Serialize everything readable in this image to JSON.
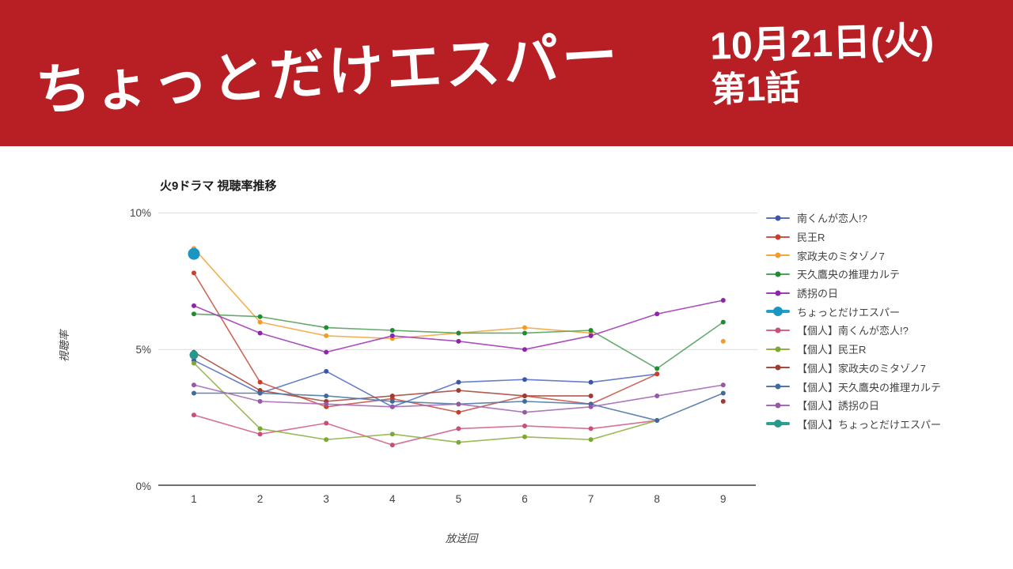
{
  "banner": {
    "title": "ちょっとだけエスパー",
    "date": "10月21日(火)",
    "episode": "第1話",
    "bg_color": "#b71f25",
    "text_color": "#ffffff"
  },
  "chart_data": {
    "type": "line",
    "title": "火9ドラマ 視聴率推移",
    "xlabel": "放送回",
    "ylabel": "視聴率",
    "x": [
      1,
      2,
      3,
      4,
      5,
      6,
      7,
      8,
      9
    ],
    "y_tick_labels": [
      "0%",
      "5%",
      "10%"
    ],
    "y_tick_values": [
      0,
      5,
      10
    ],
    "ylim": [
      0,
      10.5
    ],
    "grid": true,
    "legend_position": "right",
    "grid_color": "#dcdcdc",
    "axis_color": "#6f6f6f",
    "series": [
      {
        "name": "南くんが恋人!?",
        "color": "#5571c2",
        "marker_color": "#3c55ad",
        "bold": false,
        "marker_size": 3,
        "values": [
          4.6,
          3.4,
          4.2,
          2.9,
          3.8,
          3.9,
          3.8,
          4.1,
          null
        ]
      },
      {
        "name": "民王R",
        "color": "#c9564a",
        "marker_color": "#cc3d2e",
        "bold": false,
        "marker_size": 3,
        "values": [
          7.8,
          3.8,
          2.9,
          3.2,
          2.7,
          3.3,
          3.0,
          4.1,
          null
        ]
      },
      {
        "name": "家政夫のミタゾノ7",
        "color": "#f3a73f",
        "marker_color": "#f09c28",
        "bold": false,
        "marker_size": 3,
        "values": [
          8.7,
          6.0,
          5.5,
          5.4,
          5.6,
          5.8,
          5.6,
          null,
          5.3
        ]
      },
      {
        "name": "天久鷹央の推理カルテ",
        "color": "#55a25c",
        "marker_color": "#1f8c33",
        "bold": false,
        "marker_size": 3,
        "values": [
          6.3,
          6.2,
          5.8,
          5.7,
          5.6,
          5.6,
          5.7,
          4.3,
          6.0
        ]
      },
      {
        "name": "誘拐の日",
        "color": "#a13cb5",
        "marker_color": "#8e24aa",
        "bold": false,
        "marker_size": 3,
        "values": [
          6.6,
          5.6,
          4.9,
          5.5,
          5.3,
          5.0,
          5.5,
          6.3,
          6.8
        ]
      },
      {
        "name": "ちょっとだけエスパー",
        "color": "#219fca",
        "marker_color": "#1b96c2",
        "bold": true,
        "marker_size": 7.5,
        "values": [
          8.5,
          null,
          null,
          null,
          null,
          null,
          null,
          null,
          null
        ]
      },
      {
        "name": "【個人】南くんが恋人!?",
        "color": "#d4628c",
        "marker_color": "#c94f76",
        "bold": false,
        "marker_size": 3,
        "values": [
          2.6,
          1.9,
          2.3,
          1.5,
          2.1,
          2.2,
          2.1,
          2.4,
          null
        ]
      },
      {
        "name": "【個人】民王R",
        "color": "#8fb344",
        "marker_color": "#7da832",
        "bold": false,
        "marker_size": 3,
        "values": [
          4.5,
          2.1,
          1.7,
          1.9,
          1.6,
          1.8,
          1.7,
          2.4,
          null
        ]
      },
      {
        "name": "【個人】家政夫のミタゾノ7",
        "color": "#a8493f",
        "marker_color": "#9e3c32",
        "bold": false,
        "marker_size": 3,
        "values": [
          4.9,
          3.5,
          3.1,
          3.3,
          3.5,
          3.3,
          3.3,
          null,
          3.1
        ]
      },
      {
        "name": "【個人】天久鷹央の推理カルテ",
        "color": "#4e79a6",
        "marker_color": "#3f6a99",
        "bold": false,
        "marker_size": 3,
        "values": [
          3.4,
          3.4,
          3.3,
          3.1,
          3.0,
          3.1,
          3.0,
          2.4,
          3.4
        ]
      },
      {
        "name": "【個人】誘拐の日",
        "color": "#a669b5",
        "marker_color": "#9957a8",
        "bold": false,
        "marker_size": 3,
        "values": [
          3.7,
          3.1,
          3.0,
          2.9,
          3.0,
          2.7,
          2.9,
          3.3,
          3.7
        ]
      },
      {
        "name": "【個人】ちょっとだけエスパー",
        "color": "#2ba193",
        "marker_color": "#27998b",
        "bold": true,
        "marker_size": 5.5,
        "values": [
          4.8,
          null,
          null,
          null,
          null,
          null,
          null,
          null,
          null
        ]
      }
    ]
  }
}
